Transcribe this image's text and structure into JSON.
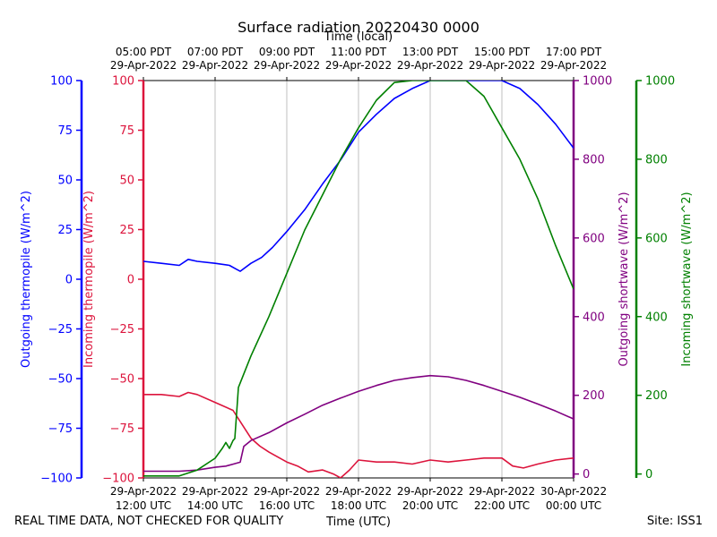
{
  "title": "Surface radiation 20220430 0000",
  "top_axis_label": "Time (local)",
  "bottom_axis_label": "Time (UTC)",
  "footer_left": "REAL TIME DATA, NOT CHECKED FOR QUALITY",
  "footer_right": "Site: ISS1",
  "colors": {
    "outgoing_thermopile": "#0000ff",
    "incoming_thermopile": "#dc143c",
    "outgoing_shortwave": "#800080",
    "incoming_shortwave": "#008000",
    "grid": "#b0b0b0"
  },
  "chart_data": {
    "type": "line",
    "grid": true,
    "x_range_utc": [
      "29-Apr-2022 12:00",
      "30-Apr-2022 00:00"
    ],
    "x_ticks": [
      {
        "utc_hour": 12,
        "bottom": [
          "29-Apr-2022",
          "12:00 UTC"
        ],
        "top": [
          "05:00 PDT",
          "29-Apr-2022"
        ]
      },
      {
        "utc_hour": 14,
        "bottom": [
          "29-Apr-2022",
          "14:00 UTC"
        ],
        "top": [
          "07:00 PDT",
          "29-Apr-2022"
        ]
      },
      {
        "utc_hour": 16,
        "bottom": [
          "29-Apr-2022",
          "16:00 UTC"
        ],
        "top": [
          "09:00 PDT",
          "29-Apr-2022"
        ]
      },
      {
        "utc_hour": 18,
        "bottom": [
          "29-Apr-2022",
          "18:00 UTC"
        ],
        "top": [
          "11:00 PDT",
          "29-Apr-2022"
        ]
      },
      {
        "utc_hour": 20,
        "bottom": [
          "29-Apr-2022",
          "20:00 UTC"
        ],
        "top": [
          "13:00 PDT",
          "29-Apr-2022"
        ]
      },
      {
        "utc_hour": 22,
        "bottom": [
          "29-Apr-2022",
          "22:00 UTC"
        ],
        "top": [
          "15:00 PDT",
          "29-Apr-2022"
        ]
      },
      {
        "utc_hour": 24,
        "bottom": [
          "30-Apr-2022",
          "00:00 UTC"
        ],
        "top": [
          "17:00 PDT",
          "29-Apr-2022"
        ]
      }
    ],
    "axes": {
      "outgoing_thermopile": {
        "label": "Outgoing thermopile (W/m^2)",
        "ylim": [
          -100,
          100
        ],
        "ticks": [
          -100,
          -75,
          -50,
          -25,
          0,
          25,
          50,
          75,
          100
        ]
      },
      "incoming_thermopile": {
        "label": "Incoming thermopile (W/m^2)",
        "ylim": [
          -100,
          100
        ],
        "ticks": [
          -100,
          -75,
          -50,
          -25,
          0,
          25,
          50,
          75,
          100
        ]
      },
      "outgoing_shortwave": {
        "label": "Outgoing shortwave (W/m^2)",
        "ylim": [
          -10,
          1000
        ],
        "ticks": [
          0,
          200,
          400,
          600,
          800,
          1000
        ]
      },
      "incoming_shortwave": {
        "label": "Incoming shortwave (W/m^2)",
        "ylim": [
          -10,
          1000
        ],
        "ticks": [
          0,
          200,
          400,
          600,
          800,
          1000
        ]
      }
    },
    "series": [
      {
        "axis": "outgoing_thermopile",
        "utc_hour": [
          12,
          12.5,
          13,
          13.25,
          13.5,
          14,
          14.4,
          14.6,
          14.7,
          15,
          15.3,
          15.6,
          16,
          16.5,
          17,
          17.5,
          18,
          18.5,
          19,
          19.5,
          20,
          20.5,
          21,
          21.5,
          22,
          22.5,
          23,
          23.5,
          24
        ],
        "values": [
          9,
          8,
          7,
          10,
          9,
          8,
          7,
          5,
          4,
          8,
          11,
          16,
          24,
          35,
          48,
          60,
          74,
          83,
          91,
          96,
          100,
          100,
          100,
          100,
          100,
          96,
          88,
          78,
          66
        ]
      },
      {
        "axis": "incoming_thermopile",
        "utc_hour": [
          12,
          12.5,
          13,
          13.25,
          13.5,
          14,
          14.5,
          14.75,
          15,
          15.25,
          15.5,
          16,
          16.3,
          16.6,
          17,
          17.3,
          17.5,
          17.75,
          18,
          18.5,
          19,
          19.5,
          20,
          20.5,
          21,
          21.5,
          22,
          22.3,
          22.6,
          23,
          23.5,
          24
        ],
        "values": [
          -58,
          -58,
          -59,
          -57,
          -58,
          -62,
          -66,
          -73,
          -80,
          -84,
          -87,
          -92,
          -94,
          -97,
          -96,
          -98,
          -100,
          -96,
          -91,
          -92,
          -92,
          -93,
          -91,
          -92,
          -91,
          -90,
          -90,
          -94,
          -95,
          -93,
          -91,
          -90
        ]
      },
      {
        "axis": "outgoing_shortwave",
        "utc_hour": [
          12,
          13,
          13.5,
          14,
          14.3,
          14.5,
          14.7,
          14.8,
          15,
          15.5,
          16,
          16.5,
          17,
          17.5,
          18,
          18.5,
          19,
          19.5,
          20,
          20.5,
          21,
          21.5,
          22,
          22.5,
          23,
          23.5,
          24
        ],
        "values": [
          7,
          7,
          10,
          17,
          20,
          25,
          30,
          70,
          85,
          105,
          130,
          152,
          175,
          193,
          210,
          225,
          238,
          245,
          250,
          247,
          238,
          225,
          210,
          195,
          178,
          160,
          140
        ]
      },
      {
        "axis": "incoming_shortwave",
        "utc_hour": [
          12,
          12.5,
          13,
          13.5,
          14,
          14.2,
          14.3,
          14.4,
          14.5,
          14.55,
          14.62,
          14.65,
          15,
          15.5,
          16,
          16.5,
          17,
          17.5,
          18,
          18.5,
          19,
          19.5,
          20,
          20.5,
          21,
          21.5,
          22,
          22.5,
          23,
          23.5,
          24
        ],
        "values": [
          -5,
          -5,
          -5,
          10,
          40,
          65,
          80,
          65,
          85,
          90,
          180,
          220,
          300,
          400,
          510,
          620,
          710,
          800,
          880,
          950,
          995,
          1000,
          1000,
          1000,
          1000,
          960,
          880,
          800,
          700,
          580,
          470
        ]
      }
    ]
  }
}
